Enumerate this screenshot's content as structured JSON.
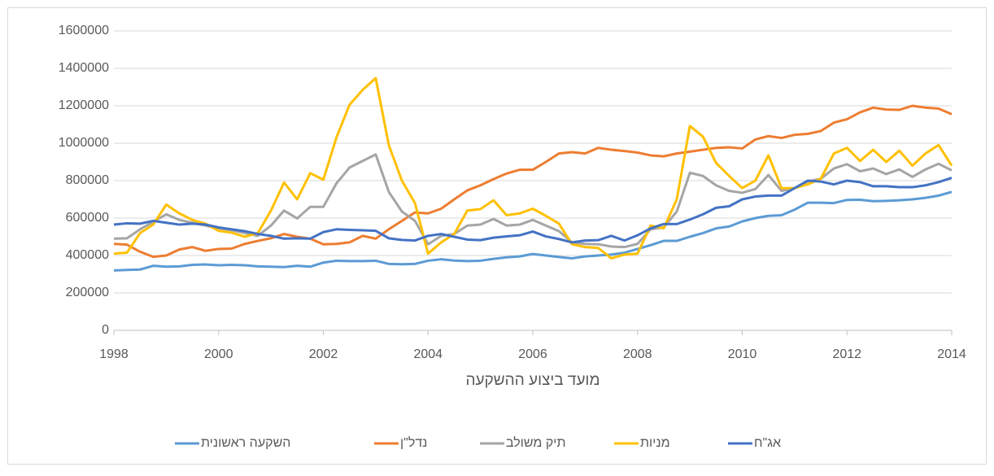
{
  "chart_data": {
    "type": "line",
    "xlabel": "מועד ביצוע ההשקעה",
    "x": [
      1998,
      1998.25,
      1998.5,
      1998.75,
      1999,
      1999.25,
      1999.5,
      1999.75,
      2000,
      2000.25,
      2000.5,
      2000.75,
      2001,
      2001.25,
      2001.5,
      2001.75,
      2002,
      2002.25,
      2002.5,
      2002.75,
      2003,
      2003.25,
      2003.5,
      2003.75,
      2004,
      2004.25,
      2004.5,
      2004.75,
      2005,
      2005.25,
      2005.5,
      2005.75,
      2006,
      2006.25,
      2006.5,
      2006.75,
      2007,
      2007.25,
      2007.5,
      2007.75,
      2008,
      2008.25,
      2008.5,
      2008.75,
      2009,
      2009.25,
      2009.5,
      2009.75,
      2010,
      2010.25,
      2010.5,
      2010.75,
      2011,
      2011.25,
      2011.5,
      2011.75,
      2012,
      2012.25,
      2012.5,
      2012.75,
      2013,
      2013.25,
      2013.5,
      2013.75,
      2014
    ],
    "xlim": [
      1998,
      2014
    ],
    "xticks": [
      1998,
      2000,
      2002,
      2004,
      2006,
      2008,
      2010,
      2012,
      2014
    ],
    "ylim": [
      0,
      1600000
    ],
    "yticks": [
      0,
      200000,
      400000,
      600000,
      800000,
      1000000,
      1200000,
      1400000,
      1600000
    ],
    "grid": true,
    "legend": "bottom",
    "series": [
      {
        "name": "השקעה ראשונית",
        "color": "#5b9bd5",
        "values": [
          320000,
          323000,
          325000,
          345000,
          340000,
          342000,
          350000,
          352000,
          348000,
          350000,
          348000,
          342000,
          340000,
          338000,
          345000,
          340000,
          362000,
          372000,
          370000,
          370000,
          372000,
          355000,
          353000,
          355000,
          372000,
          380000,
          373000,
          370000,
          372000,
          382000,
          390000,
          395000,
          408000,
          400000,
          392000,
          385000,
          395000,
          400000,
          405000,
          415000,
          435000,
          455000,
          478000,
          478000,
          500000,
          520000,
          545000,
          555000,
          582000,
          600000,
          612000,
          615000,
          645000,
          682000,
          682000,
          680000,
          697000,
          698000,
          690000,
          692000,
          695000,
          700000,
          708000,
          720000,
          740000
        ]
      },
      {
        "name": "נדל\"ן",
        "color": "#ed7d31",
        "values": [
          462000,
          458000,
          420000,
          393000,
          400000,
          432000,
          445000,
          425000,
          435000,
          437000,
          462000,
          478000,
          492000,
          515000,
          500000,
          490000,
          460000,
          462000,
          470000,
          505000,
          490000,
          540000,
          585000,
          630000,
          625000,
          650000,
          700000,
          748000,
          775000,
          808000,
          838000,
          858000,
          858000,
          900000,
          945000,
          952000,
          945000,
          975000,
          965000,
          958000,
          950000,
          935000,
          930000,
          945000,
          955000,
          965000,
          975000,
          978000,
          972000,
          1020000,
          1038000,
          1028000,
          1045000,
          1050000,
          1065000,
          1110000,
          1128000,
          1165000,
          1190000,
          1180000,
          1178000,
          1200000,
          1190000,
          1185000,
          1155000
        ]
      },
      {
        "name": "תיק משולב",
        "color": "#a5a5a5",
        "values": [
          490000,
          492000,
          540000,
          580000,
          620000,
          590000,
          575000,
          560000,
          545000,
          535000,
          520000,
          505000,
          560000,
          640000,
          598000,
          660000,
          660000,
          785000,
          870000,
          905000,
          940000,
          740000,
          635000,
          585000,
          460000,
          505000,
          515000,
          560000,
          565000,
          595000,
          560000,
          565000,
          590000,
          560000,
          530000,
          470000,
          462000,
          460000,
          448000,
          445000,
          462000,
          540000,
          550000,
          635000,
          842000,
          825000,
          775000,
          745000,
          735000,
          755000,
          830000,
          745000,
          760000,
          795000,
          810000,
          865000,
          888000,
          850000,
          865000,
          835000,
          860000,
          820000,
          860000,
          890000,
          855000
        ]
      },
      {
        "name": "מניות",
        "color": "#ffc000",
        "values": [
          410000,
          415000,
          520000,
          565000,
          672000,
          625000,
          590000,
          570000,
          532000,
          522000,
          500000,
          520000,
          640000,
          790000,
          700000,
          840000,
          805000,
          1030000,
          1205000,
          1285000,
          1348000,
          990000,
          800000,
          680000,
          410000,
          470000,
          515000,
          640000,
          648000,
          695000,
          615000,
          625000,
          650000,
          612000,
          570000,
          460000,
          445000,
          440000,
          385000,
          405000,
          410000,
          560000,
          545000,
          700000,
          1092000,
          1035000,
          895000,
          825000,
          760000,
          800000,
          935000,
          760000,
          760000,
          780000,
          810000,
          945000,
          975000,
          905000,
          965000,
          900000,
          960000,
          880000,
          945000,
          990000,
          880000
        ]
      },
      {
        "name": "אג\"ח",
        "color": "#4472c4",
        "values": [
          565000,
          572000,
          570000,
          585000,
          575000,
          565000,
          570000,
          565000,
          550000,
          540000,
          530000,
          515000,
          505000,
          490000,
          492000,
          490000,
          525000,
          540000,
          537000,
          535000,
          532000,
          492000,
          483000,
          480000,
          505000,
          515000,
          500000,
          485000,
          482000,
          495000,
          502000,
          508000,
          528000,
          502000,
          488000,
          470000,
          480000,
          482000,
          505000,
          480000,
          508000,
          545000,
          568000,
          568000,
          592000,
          620000,
          655000,
          663000,
          700000,
          715000,
          720000,
          720000,
          760000,
          800000,
          795000,
          780000,
          800000,
          792000,
          770000,
          770000,
          765000,
          765000,
          775000,
          792000,
          815000
        ]
      }
    ]
  }
}
